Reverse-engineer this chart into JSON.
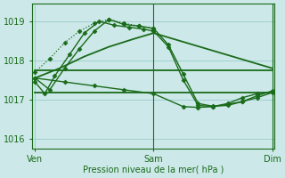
{
  "background_color": "#cce8e8",
  "grid_color": "#99cccc",
  "line_color": "#1a6b1a",
  "title": "Pression niveau de la mer( hPa )",
  "yticks": [
    1016,
    1017,
    1018,
    1019
  ],
  "ylim": [
    1015.75,
    1019.45
  ],
  "xtick_labels": [
    "Ven",
    "Sam",
    "Dim"
  ],
  "xtick_positions": [
    0,
    48,
    96
  ],
  "xlim": [
    -1,
    97
  ],
  "series": [
    {
      "x": [
        0,
        4,
        8,
        14,
        20,
        26,
        32,
        38,
        44,
        48,
        54,
        60,
        66,
        72,
        78,
        84,
        90,
        96
      ],
      "y": [
        1017.45,
        1017.15,
        1017.6,
        1018.15,
        1018.7,
        1019.0,
        1018.9,
        1018.85,
        1018.8,
        1018.75,
        1018.35,
        1017.5,
        1016.85,
        1016.82,
        1016.9,
        1017.05,
        1017.15,
        1017.2
      ],
      "marker": "D",
      "ms": 2.5,
      "lw": 1.0
    },
    {
      "x": [
        0,
        6,
        12,
        18,
        24,
        30,
        36,
        42,
        48,
        54,
        60,
        66,
        72,
        78,
        84,
        90,
        96
      ],
      "y": [
        1017.55,
        1017.25,
        1017.8,
        1018.3,
        1018.75,
        1019.05,
        1018.92,
        1018.88,
        1018.82,
        1018.4,
        1017.65,
        1016.9,
        1016.83,
        1016.85,
        1016.95,
        1017.1,
        1017.22
      ],
      "marker": "D",
      "ms": 2.5,
      "lw": 1.0
    },
    {
      "x": [
        0,
        96
      ],
      "y": [
        1017.75,
        1017.75
      ],
      "marker": null,
      "ms": 0,
      "lw": 1.3
    },
    {
      "x": [
        0,
        10,
        20,
        30,
        40,
        48,
        96
      ],
      "y": [
        1017.55,
        1017.8,
        1018.1,
        1018.35,
        1018.55,
        1018.7,
        1017.8
      ],
      "marker": null,
      "ms": 0,
      "lw": 1.3
    },
    {
      "x": [
        0,
        96
      ],
      "y": [
        1017.18,
        1017.18
      ],
      "marker": null,
      "ms": 0,
      "lw": 1.3
    },
    {
      "x": [
        0,
        12,
        24,
        36,
        48,
        60,
        66,
        72,
        78,
        84,
        90,
        96
      ],
      "y": [
        1017.55,
        1017.45,
        1017.35,
        1017.25,
        1017.15,
        1016.82,
        1016.8,
        1016.82,
        1016.88,
        1016.95,
        1017.05,
        1017.18
      ],
      "marker": "D",
      "ms": 2.5,
      "lw": 1.0
    },
    {
      "x": [
        0,
        6,
        12,
        18,
        24,
        30,
        36,
        42,
        48
      ],
      "y": [
        1017.7,
        1018.05,
        1018.45,
        1018.75,
        1018.95,
        1019.05,
        1018.95,
        1018.88,
        1018.82
      ],
      "marker": "D",
      "ms": 2.5,
      "lw": 0.9,
      "dotted": true
    }
  ],
  "vlines": [
    48,
    96
  ],
  "marker_size": 2.5
}
